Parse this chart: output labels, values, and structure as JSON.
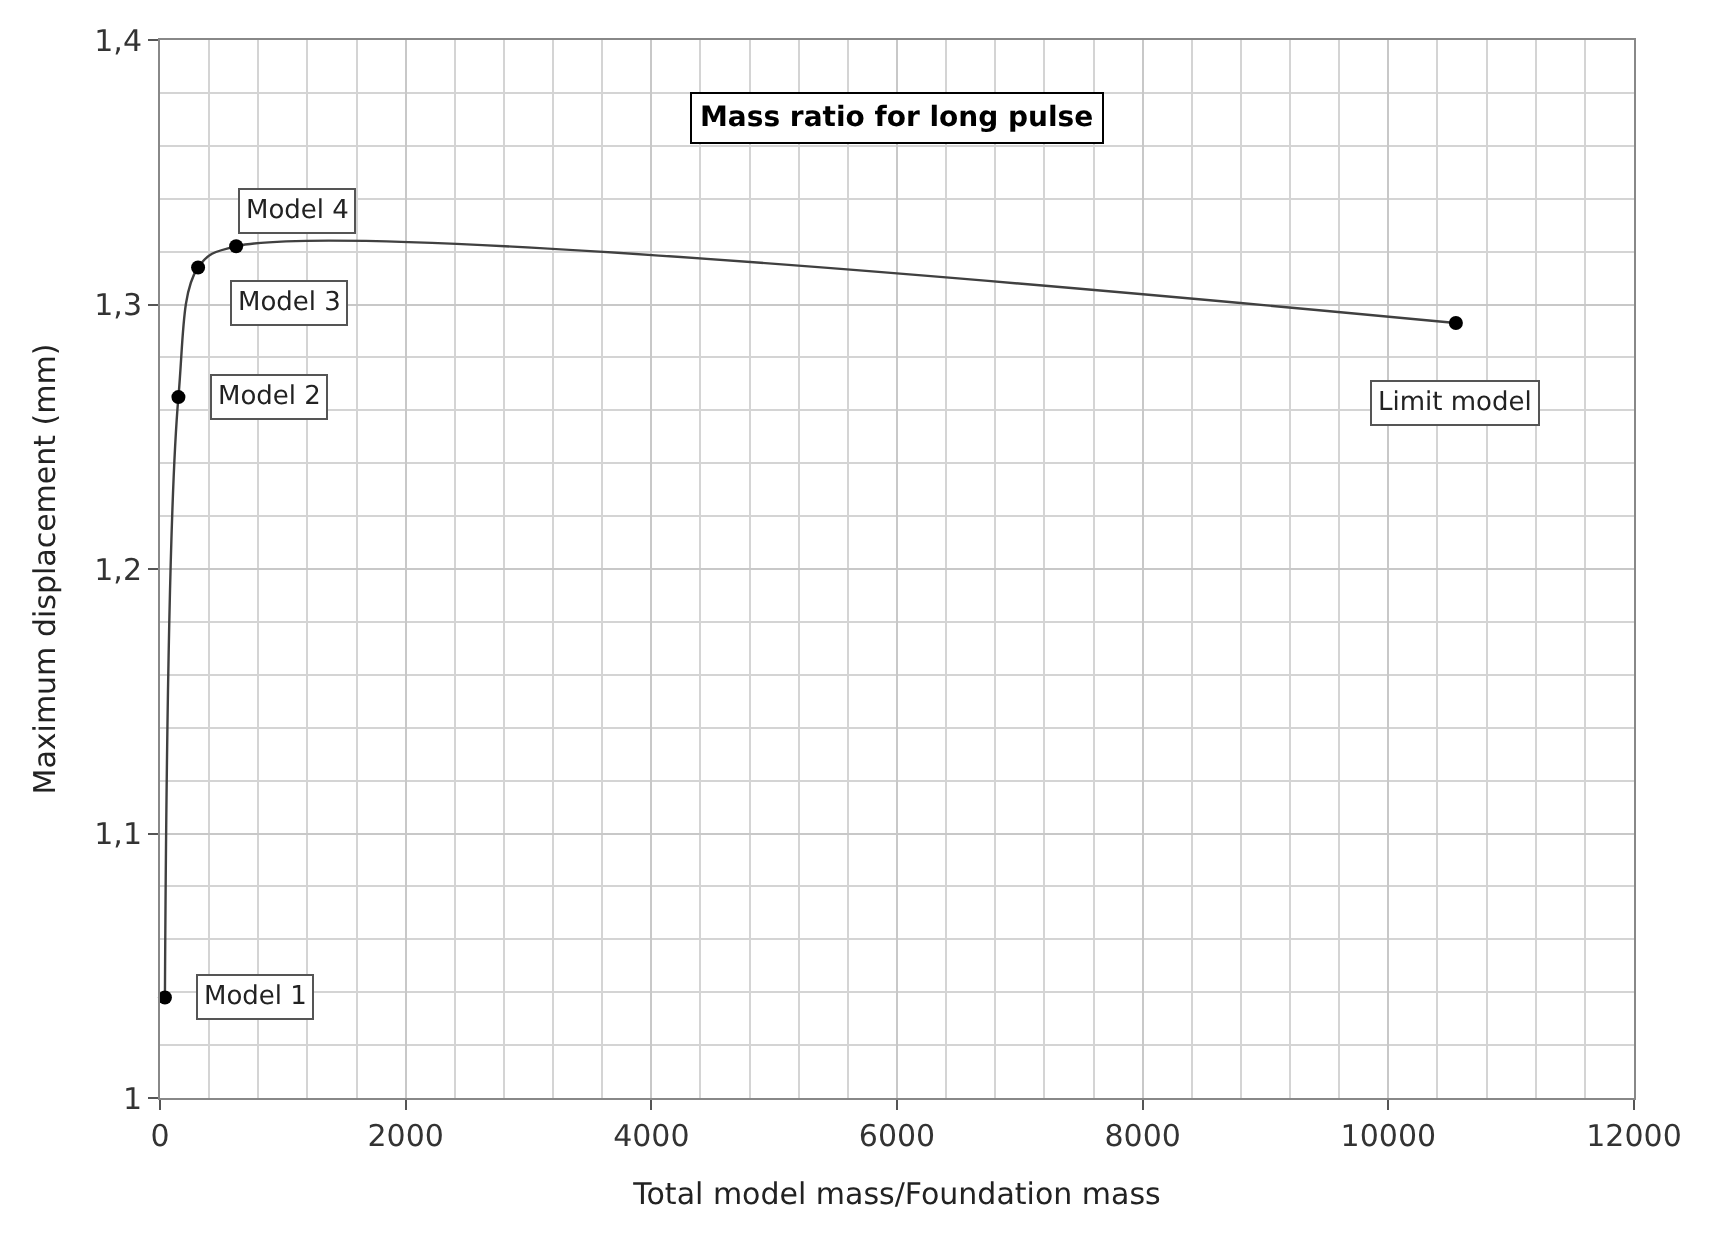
{
  "chart_data": {
    "type": "line",
    "title": "Mass ratio for long pulse",
    "xlabel": "Total model mass/Foundation mass",
    "ylabel": "Maximum displacement (mm)",
    "x": [
      40,
      150,
      310,
      620,
      10550
    ],
    "series": [
      {
        "color": "#404040",
        "values": [
          1.038,
          1.265,
          1.314,
          1.322,
          1.293
        ]
      }
    ],
    "annotations": [
      {
        "text": "Model 1",
        "x": 40,
        "y": 1.038
      },
      {
        "text": "Model 2",
        "x": 150,
        "y": 1.265
      },
      {
        "text": "Model 3",
        "x": 310,
        "y": 1.314
      },
      {
        "text": "Model 4",
        "x": 620,
        "y": 1.322
      },
      {
        "text": "Limit model",
        "x": 10550,
        "y": 1.293
      }
    ],
    "xlim": [
      0,
      12000
    ],
    "xticks": [
      0,
      2000,
      4000,
      6000,
      8000,
      10000,
      12000
    ],
    "ylim": [
      1,
      1.4
    ],
    "yticks": [
      {
        "value": 1,
        "label": "1"
      },
      {
        "value": 1.1,
        "label": "1,1"
      },
      {
        "value": 1.2,
        "label": "1,2"
      },
      {
        "value": 1.3,
        "label": "1,3"
      },
      {
        "value": 1.4,
        "label": "1,4"
      }
    ],
    "grid": true,
    "marker": "circle",
    "line_style": "solid",
    "legend": false
  }
}
